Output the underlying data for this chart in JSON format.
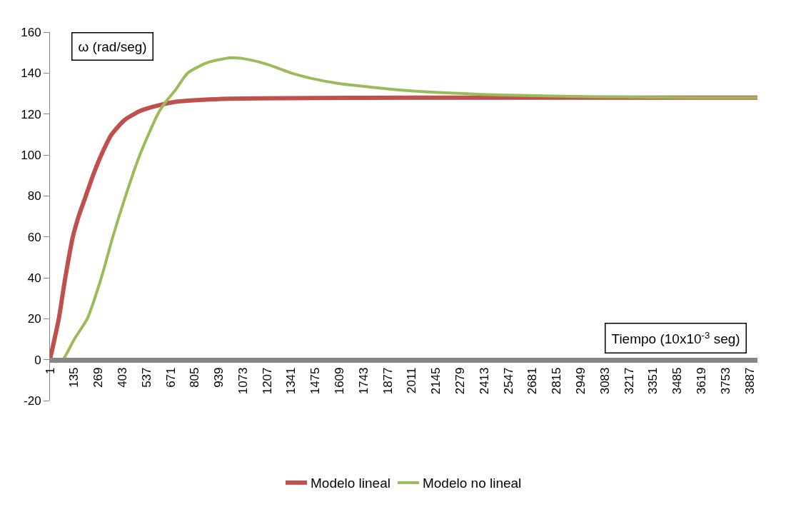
{
  "chart_data": {
    "type": "line",
    "xlabel": "Tiempo (10x10$^{-3}$ seg)",
    "ylabel": "ω (rad/seg)",
    "xlim": [
      1,
      3930
    ],
    "xticks": [
      1,
      135,
      269,
      403,
      537,
      671,
      805,
      939,
      1073,
      1207,
      1341,
      1475,
      1609,
      1743,
      1877,
      2011,
      2145,
      2279,
      2413,
      2547,
      2681,
      2815,
      2949,
      3083,
      3217,
      3351,
      3485,
      3619,
      3753,
      3887
    ],
    "ylim": [
      -20,
      160
    ],
    "yticks": [
      -20,
      0,
      20,
      40,
      60,
      80,
      100,
      120,
      140,
      160
    ],
    "grid": false,
    "legend": "bottom",
    "marker": "none",
    "line_style": "solid",
    "series": [
      {
        "name": "Modelo lineal",
        "color": "#c0504d",
        "x": [
          1,
          50,
          86,
          128,
          160,
          200,
          240,
          286,
          343,
          414,
          500,
          614,
          700,
          850,
          1000,
          1300,
          2000,
          3930
        ],
        "values": [
          0,
          20,
          40,
          60,
          70,
          80,
          90,
          100,
          110,
          117,
          121.5,
          124.5,
          126,
          127,
          127.5,
          127.8,
          128,
          128
        ]
      },
      {
        "name": "Modelo no lineal",
        "color": "#9bbb59",
        "x": [
          1,
          35,
          72,
          136,
          208,
          286,
          350,
          421,
          500,
          600,
          644,
          700,
          765,
          871,
          1000,
          1080,
          1160,
          1250,
          1342,
          1450,
          1600,
          1800,
          1940,
          2100,
          2300,
          2500,
          2700,
          3000,
          3300,
          3600,
          3930
        ],
        "values": [
          0,
          -1,
          0,
          10,
          20,
          40,
          60,
          80,
          100,
          120,
          126,
          132,
          140,
          145,
          147.5,
          147,
          145.5,
          143,
          140,
          137.5,
          135,
          133,
          131.8,
          130.8,
          130,
          129.3,
          129,
          128.5,
          128.2,
          128,
          128
        ]
      }
    ]
  }
}
